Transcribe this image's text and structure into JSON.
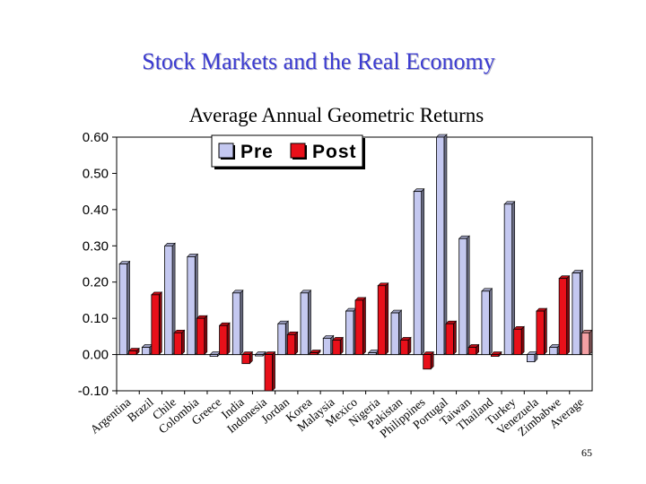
{
  "slide": {
    "title": "Stock Markets and the Real Economy",
    "number": "65"
  },
  "chart_data": {
    "type": "bar",
    "title": "Average Annual Geometric Returns",
    "xlabel": "",
    "ylabel": "",
    "ylim": [
      -0.1,
      0.6
    ],
    "yticks": [
      "0.60",
      "0.50",
      "0.40",
      "0.30",
      "0.20",
      "0.10",
      "0.00",
      "-0.10"
    ],
    "ytick_values": [
      0.6,
      0.5,
      0.4,
      0.3,
      0.2,
      0.1,
      0.0,
      -0.1
    ],
    "grid": false,
    "legend": "top-left",
    "categories": [
      "Argentina",
      "Brazil",
      "Chile",
      "Colombia",
      "Greece",
      "India",
      "Indonesia",
      "Jordan",
      "Korea",
      "Malaysia",
      "Mexico",
      "Nigeria",
      "Pakistan",
      "Philippines",
      "Portugal",
      "Taiwan",
      "Thailand",
      "Turkey",
      "Venezuela",
      "Zimbabwe",
      "Average"
    ],
    "series": [
      {
        "name": "Pre",
        "color": "#c4c8f0",
        "values": [
          0.25,
          0.02,
          0.3,
          0.27,
          -0.005,
          0.17,
          0.0,
          0.085,
          0.17,
          0.045,
          0.12,
          0.005,
          0.115,
          0.45,
          0.6,
          0.32,
          0.175,
          0.415,
          -0.02,
          0.02,
          0.225
        ]
      },
      {
        "name": "Post",
        "color": "#e8101a",
        "values": [
          0.01,
          0.165,
          0.06,
          0.1,
          0.08,
          -0.025,
          -0.1,
          0.055,
          0.005,
          0.04,
          0.15,
          0.19,
          0.04,
          -0.04,
          0.085,
          0.02,
          -0.005,
          0.07,
          0.12,
          0.21,
          0.06
        ]
      }
    ]
  }
}
